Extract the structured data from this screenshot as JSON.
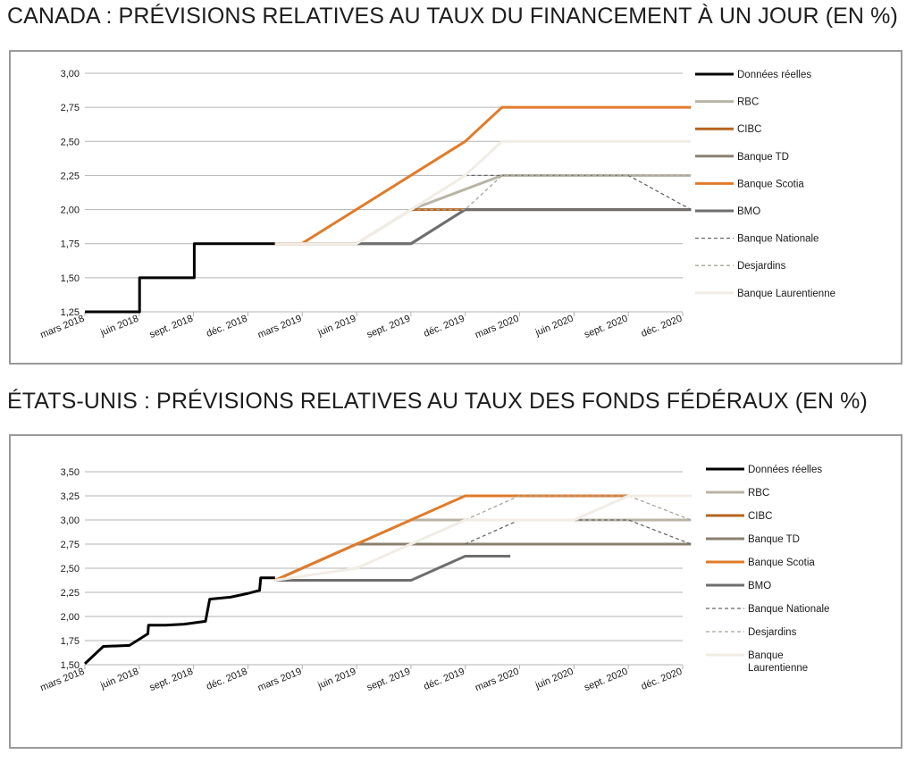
{
  "charts": [
    {
      "title": "CANADA : PRÉVISIONS RELATIVES AU TAUX DU FINANCEMENT À UN JOUR (EN %)"
    },
    {
      "title": "ÉTATS-UNIS : PRÉVISIONS RELATIVES AU TAUX DES FONDS FÉDÉRAUX (EN %)"
    }
  ],
  "colors": {
    "actual": "#000000",
    "rbc": "#b8b5a6",
    "cibc": "#b5641f",
    "td": "#8a8070",
    "scotia": "#e07b2a",
    "bmo": "#6e6e6e",
    "nationale": "#666666",
    "desjardins": "#a7a59a",
    "laurentienne": "#f1ede6",
    "grid": "#b3b3b3"
  },
  "chart_data": [
    {
      "type": "line",
      "title": "CANADA : PRÉVISIONS RELATIVES AU TAUX DU FINANCEMENT À UN JOUR (EN %)",
      "x_ticks": [
        "mars 2018",
        "juin 2018",
        "sept. 2018",
        "déc. 2018",
        "mars 2019",
        "juin 2019",
        "sept. 2019",
        "déc. 2019",
        "mars 2020",
        "juin 2020",
        "sept. 2020",
        "déc. 2020"
      ],
      "y_ticks": [
        "1,25",
        "1,50",
        "1,75",
        "2,00",
        "2,25",
        "2,50",
        "2,75",
        "3,00"
      ],
      "ylim": [
        1.25,
        3.0
      ],
      "grid": true,
      "legend_position": "right",
      "series": [
        {
          "name": "Données réelles",
          "color_key": "actual",
          "dash": "solid",
          "points": [
            [
              "2018-03-01",
              1.25
            ],
            [
              "2018-06-01",
              1.25
            ],
            [
              "2018-06-01",
              1.5
            ],
            [
              "2018-09-01",
              1.5
            ],
            [
              "2018-09-01",
              1.75
            ],
            [
              "2019-01-15",
              1.75
            ]
          ]
        },
        {
          "name": "RBC",
          "color_key": "rbc",
          "dash": "solid",
          "points": [
            [
              "2019-01-15",
              1.75
            ],
            [
              "2019-06-01",
              1.75
            ],
            [
              "2019-09-01",
              2.0
            ],
            [
              "2020-02-01",
              2.25
            ],
            [
              "2020-12-15",
              2.25
            ]
          ]
        },
        {
          "name": "CIBC",
          "color_key": "cibc",
          "dash": "solid",
          "points": [
            [
              "2019-09-01",
              2.0
            ],
            [
              "2020-12-15",
              2.0
            ]
          ]
        },
        {
          "name": "Banque TD",
          "color_key": "td",
          "dash": "solid",
          "points": [
            [
              "2019-01-15",
              1.75
            ],
            [
              "2019-09-01",
              1.75
            ],
            [
              "2019-12-01",
              2.0
            ],
            [
              "2020-12-15",
              2.0
            ]
          ]
        },
        {
          "name": "Banque Scotia",
          "color_key": "scotia",
          "dash": "solid",
          "points": [
            [
              "2019-01-15",
              1.75
            ],
            [
              "2019-03-01",
              1.75
            ],
            [
              "2019-12-01",
              2.5
            ],
            [
              "2020-02-01",
              2.75
            ],
            [
              "2020-12-15",
              2.75
            ]
          ]
        },
        {
          "name": "BMO",
          "color_key": "bmo",
          "dash": "solid",
          "points": [
            [
              "2019-06-01",
              1.75
            ],
            [
              "2019-09-01",
              1.75
            ],
            [
              "2019-12-01",
              2.0
            ],
            [
              "2020-12-15",
              2.0
            ]
          ]
        },
        {
          "name": "Banque Nationale",
          "color_key": "nationale",
          "dash": "dashed",
          "points": [
            [
              "2019-12-01",
              2.25
            ],
            [
              "2020-09-01",
              2.25
            ],
            [
              "2020-12-15",
              2.0
            ]
          ]
        },
        {
          "name": "Desjardins",
          "color_key": "desjardins",
          "dash": "dashed",
          "points": [
            [
              "2019-09-01",
              2.0
            ],
            [
              "2019-12-01",
              2.0
            ],
            [
              "2020-02-01",
              2.25
            ],
            [
              "2020-12-15",
              2.25
            ]
          ]
        },
        {
          "name": "Banque Laurentienne",
          "color_key": "laurentienne",
          "dash": "solid",
          "points": [
            [
              "2019-01-15",
              1.75
            ],
            [
              "2019-06-01",
              1.75
            ],
            [
              "2019-09-01",
              2.0
            ],
            [
              "2019-12-01",
              2.25
            ],
            [
              "2020-02-01",
              2.5
            ],
            [
              "2020-12-15",
              2.5
            ]
          ]
        }
      ]
    },
    {
      "type": "line",
      "title": "ÉTATS-UNIS : PRÉVISIONS RELATIVES AU TAUX DES FONDS FÉDÉRAUX (EN %)",
      "x_ticks": [
        "mars 2018",
        "juin 2018",
        "sept. 2018",
        "déc. 2018",
        "mars 2019",
        "juin 2019",
        "sept. 2019",
        "déc. 2019",
        "mars 2020",
        "juin 2020",
        "sept. 2020",
        "déc. 2020"
      ],
      "y_ticks": [
        "1,50",
        "1,75",
        "2,00",
        "2,25",
        "2,50",
        "2,75",
        "3,00",
        "3,25",
        "3,50"
      ],
      "ylim": [
        1.5,
        3.5
      ],
      "grid": true,
      "legend_position": "right",
      "series": [
        {
          "name": "Données réelles",
          "color_key": "actual",
          "dash": "solid",
          "points": [
            [
              "2018-03-01",
              1.51
            ],
            [
              "2018-04-01",
              1.69
            ],
            [
              "2018-05-15",
              1.7
            ],
            [
              "2018-06-15",
              1.82
            ],
            [
              "2018-06-16",
              1.91
            ],
            [
              "2018-07-15",
              1.91
            ],
            [
              "2018-08-15",
              1.92
            ],
            [
              "2018-09-20",
              1.95
            ],
            [
              "2018-09-27",
              2.18
            ],
            [
              "2018-11-01",
              2.2
            ],
            [
              "2018-12-01",
              2.24
            ],
            [
              "2018-12-20",
              2.27
            ],
            [
              "2018-12-22",
              2.4
            ],
            [
              "2019-01-15",
              2.4
            ]
          ]
        },
        {
          "name": "RBC",
          "color_key": "rbc",
          "dash": "solid",
          "points": [
            [
              "2019-01-15",
              2.375
            ],
            [
              "2019-06-01",
              2.75
            ],
            [
              "2019-09-01",
              3.0
            ],
            [
              "2020-12-15",
              3.0
            ]
          ]
        },
        {
          "name": "CIBC",
          "color_key": "cibc",
          "dash": "solid",
          "points": [
            [
              "2019-01-15",
              2.375
            ],
            [
              "2019-06-01",
              2.375
            ]
          ]
        },
        {
          "name": "Banque TD",
          "color_key": "td",
          "dash": "solid",
          "points": [
            [
              "2019-01-15",
              2.375
            ],
            [
              "2019-06-01",
              2.75
            ],
            [
              "2020-12-15",
              2.75
            ]
          ]
        },
        {
          "name": "Banque Scotia",
          "color_key": "scotia",
          "dash": "solid",
          "points": [
            [
              "2019-01-15",
              2.375
            ],
            [
              "2019-12-01",
              3.25
            ],
            [
              "2020-12-15",
              3.25
            ]
          ]
        },
        {
          "name": "BMO",
          "color_key": "bmo",
          "dash": "solid",
          "points": [
            [
              "2019-01-15",
              2.375
            ],
            [
              "2019-09-01",
              2.375
            ],
            [
              "2019-12-01",
              2.625
            ],
            [
              "2020-02-15",
              2.625
            ]
          ]
        },
        {
          "name": "Banque Nationale",
          "color_key": "nationale",
          "dash": "dashed",
          "points": [
            [
              "2019-12-01",
              2.75
            ],
            [
              "2020-03-01",
              3.0
            ],
            [
              "2020-09-01",
              3.0
            ],
            [
              "2020-12-15",
              2.75
            ]
          ]
        },
        {
          "name": "Desjardins",
          "color_key": "desjardins",
          "dash": "dashed",
          "points": [
            [
              "2019-12-01",
              3.0
            ],
            [
              "2020-03-01",
              3.25
            ],
            [
              "2020-09-01",
              3.25
            ],
            [
              "2020-12-15",
              3.0
            ]
          ]
        },
        {
          "name": "Banque Laurentienne",
          "color_key": "laurentienne",
          "dash": "solid",
          "points": [
            [
              "2019-01-15",
              2.375
            ],
            [
              "2019-06-01",
              2.5
            ],
            [
              "2019-12-01",
              3.0
            ],
            [
              "2020-06-01",
              3.0
            ],
            [
              "2020-09-01",
              3.25
            ],
            [
              "2020-12-15",
              3.25
            ]
          ]
        }
      ]
    }
  ]
}
